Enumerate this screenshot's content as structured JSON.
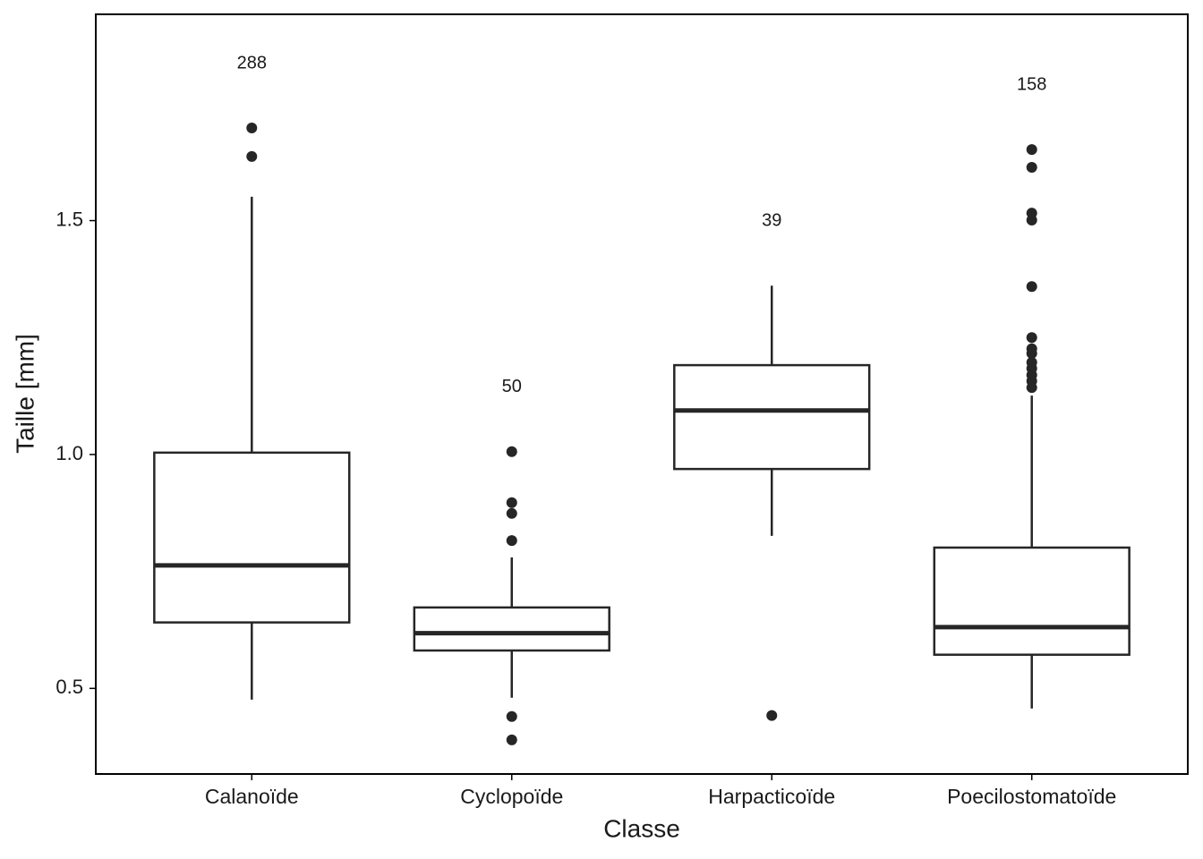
{
  "chart_data": {
    "type": "box",
    "x_label": "Classe",
    "y_label": "Taille  [mm]",
    "categories": [
      "Calanoïde",
      "Cyclopoïde",
      "Harpacticoïde",
      "Poecilostomatoïde"
    ],
    "counts": [
      288,
      50,
      39,
      158
    ],
    "boxes": [
      {
        "whisker_low": 0.476,
        "q1": 0.641,
        "median": 0.763,
        "q3": 1.004,
        "whisker_high": 1.551,
        "outliers": [
          1.698,
          1.637
        ]
      },
      {
        "whisker_low": 0.48,
        "q1": 0.581,
        "median": 0.618,
        "q3": 0.673,
        "whisker_high": 0.78,
        "outliers": [
          1.006,
          0.897,
          0.874,
          0.816,
          0.44,
          0.39
        ]
      },
      {
        "whisker_low": 0.826,
        "q1": 0.969,
        "median": 1.094,
        "q3": 1.191,
        "whisker_high": 1.361,
        "outliers": [
          0.442
        ]
      },
      {
        "whisker_low": 0.457,
        "q1": 0.572,
        "median": 0.631,
        "q3": 0.801,
        "whisker_high": 1.126,
        "outliers": [
          1.652,
          1.614,
          1.516,
          1.501,
          1.359,
          1.25,
          1.226,
          1.216,
          1.197,
          1.184,
          1.17,
          1.157,
          1.143
        ]
      }
    ],
    "color": "#262626",
    "ylim": [
      0.317,
      1.941
    ],
    "yticks": [
      0.5,
      {
        "value": 1,
        "label": "1.0"
      },
      1.5
    ]
  }
}
